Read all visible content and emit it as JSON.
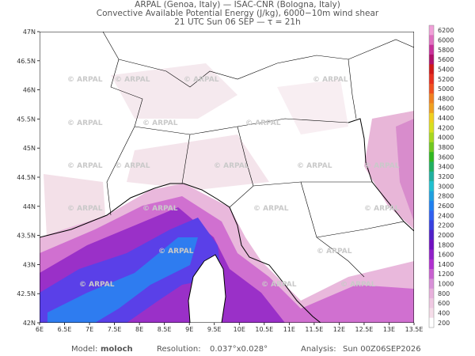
{
  "title": [
    "ARPAL (Genoa, Italy)  —  ISAC-CNR (Bologna, Italy)",
    "Convective Available Potential Energy (J/kg), 6000−10m wind shear",
    "21 UTC Sun 06 SEP  —  τ = 21h"
  ],
  "lat_labels": [
    "47N",
    "46.5N",
    "46N",
    "45.5N",
    "45N",
    "44.5N",
    "44N",
    "43.5N",
    "43N",
    "42.5N",
    "42N"
  ],
  "lon_labels": [
    "6E",
    "6.5E",
    "7E",
    "7.5E",
    "8E",
    "8.5E",
    "9E",
    "9.5E",
    "10E",
    "10.5E",
    "11E",
    "11.5E",
    "12E",
    "12.5E",
    "13E",
    "13.5E"
  ],
  "watermark": "© ARPAL",
  "colorbar": {
    "labels": [
      6200,
      6000,
      5800,
      5600,
      5400,
      5200,
      5000,
      4800,
      4600,
      4400,
      4200,
      4000,
      3800,
      3600,
      3400,
      3200,
      3000,
      2800,
      2600,
      2400,
      2200,
      2000,
      1800,
      1600,
      1400,
      1200,
      1000,
      800,
      600,
      400,
      200
    ],
    "colors": [
      "#f0a0d8",
      "#e070c0",
      "#c8309a",
      "#b0106a",
      "#d01818",
      "#e83020",
      "#f05020",
      "#f08020",
      "#f0a020",
      "#f0d020",
      "#d8e020",
      "#a8d820",
      "#70c820",
      "#30b820",
      "#20b060",
      "#20b0a0",
      "#20c0d0",
      "#20a0e0",
      "#2080f0",
      "#3060f0",
      "#3840e0",
      "#5020c8",
      "#7010c0",
      "#9020c8",
      "#b030d0",
      "#c860d0",
      "#d890d8",
      "#e8b0dc",
      "#efc8e2",
      "#f5dde9",
      "#ffffff"
    ]
  },
  "footer": {
    "model_label": "Model:",
    "model": "moloch",
    "resolution_label": "Resolution:",
    "resolution": "0.037°x0.028°",
    "analysis_label": "Analysis:",
    "analysis": "Sun 00Z06SEP2026"
  }
}
